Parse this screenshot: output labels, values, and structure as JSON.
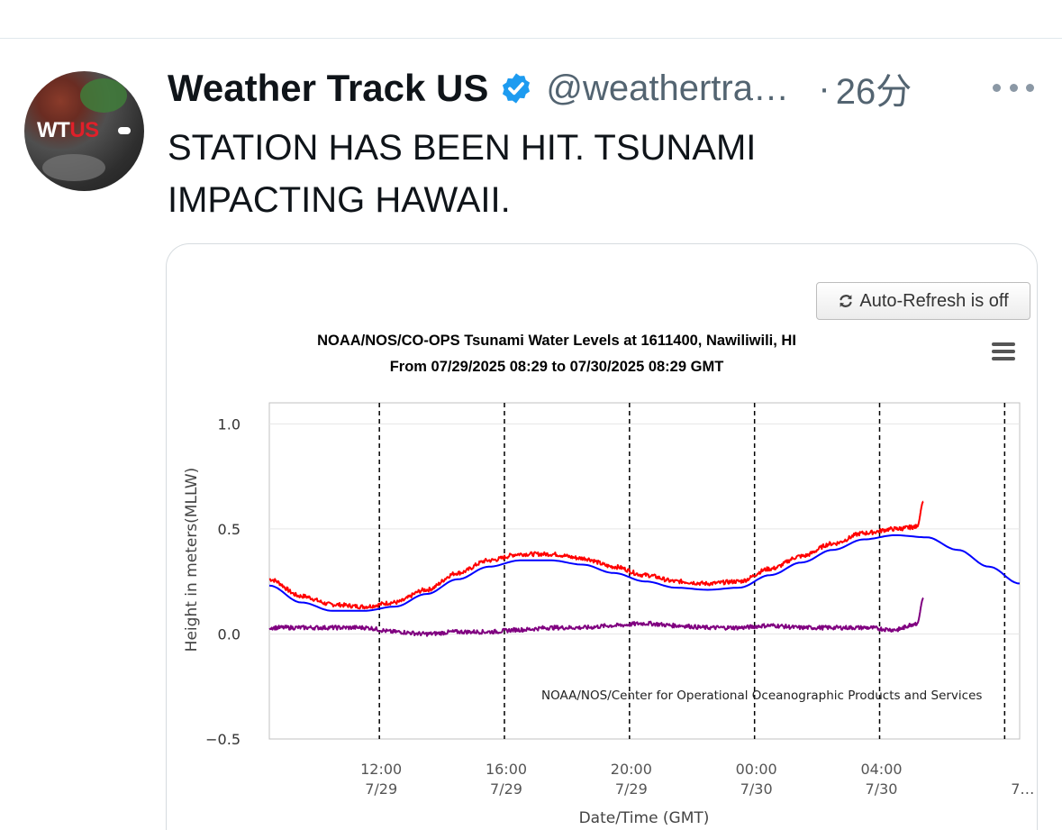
{
  "tweet": {
    "author_name": "Weather Track US",
    "handle": "@weathertra…",
    "separator": "·",
    "time": "26分",
    "text_line1": "STATION HAS BEEN HIT. TSUNAMI",
    "text_line2": "IMPACTING HAWAII.",
    "avatar_logo_white": "WT",
    "avatar_logo_red": "US",
    "verified_color": "#1d9bf0"
  },
  "card": {
    "refresh_button_label": "Auto-Refresh is off",
    "refresh_icon": "refresh-icon",
    "menu_icon": "hamburger-menu-icon"
  },
  "chart_data": {
    "type": "line",
    "title": "NOAA/NOS/CO-OPS Tsunami Water Levels at 1611400, Nawiliwili, HI",
    "subtitle": "From 07/29/2025 08:29 to 07/30/2025 08:29 GMT",
    "xlabel": "Date/Time (GMT)",
    "ylabel": "Height in meters(MLLW)",
    "credit": "NOAA/NOS/Center for Operational Oceanographic Products and Services",
    "x_range_hours": [
      8.48,
      32.48
    ],
    "ylim": [
      -0.5,
      1.1
    ],
    "y_ticks": [
      {
        "value": 1.0,
        "label": "1.0"
      },
      {
        "value": 0.5,
        "label": "0.5"
      },
      {
        "value": 0.0,
        "label": "0.0"
      },
      {
        "value": -0.5,
        "label": "−0.5"
      }
    ],
    "x_ticks": [
      {
        "hour": 12,
        "time": "12:00",
        "date": "7/29"
      },
      {
        "hour": 16,
        "time": "16:00",
        "date": "7/29"
      },
      {
        "hour": 20,
        "time": "20:00",
        "date": "7/29"
      },
      {
        "hour": 24,
        "time": "00:00",
        "date": "7/30"
      },
      {
        "hour": 28,
        "time": "04:00",
        "date": "7/30"
      },
      {
        "hour": 32,
        "time": "",
        "date": "7…"
      }
    ],
    "grid": true,
    "series": [
      {
        "color": "#0000ff",
        "x": [
          8.48,
          9.5,
          10.5,
          11.5,
          12.5,
          13.5,
          14.5,
          15.5,
          16.5,
          17.5,
          18.5,
          19.5,
          20.5,
          21.5,
          22.5,
          23.5,
          24.5,
          25.5,
          26.5,
          27.5,
          28.5,
          29.5,
          30.5,
          31.5,
          32.48
        ],
        "y": [
          0.23,
          0.15,
          0.11,
          0.11,
          0.13,
          0.19,
          0.26,
          0.32,
          0.35,
          0.35,
          0.33,
          0.29,
          0.25,
          0.22,
          0.21,
          0.22,
          0.28,
          0.34,
          0.4,
          0.45,
          0.47,
          0.46,
          0.4,
          0.32,
          0.24
        ]
      },
      {
        "color": "#ff0000",
        "x": [
          8.48,
          9.5,
          10.5,
          11.5,
          12.5,
          13.5,
          14.5,
          15.5,
          16.5,
          17.5,
          18.5,
          19.5,
          20.5,
          21.5,
          22.5,
          23.5,
          24.5,
          25.5,
          26.5,
          27.5,
          28.5,
          29.2,
          29.4
        ],
        "y": [
          0.26,
          0.18,
          0.14,
          0.13,
          0.15,
          0.21,
          0.29,
          0.35,
          0.38,
          0.38,
          0.36,
          0.32,
          0.28,
          0.25,
          0.24,
          0.25,
          0.31,
          0.37,
          0.43,
          0.48,
          0.5,
          0.51,
          0.63
        ]
      },
      {
        "color": "#800080",
        "x": [
          8.48,
          9.5,
          10.5,
          11.5,
          12.5,
          13.5,
          14.5,
          15.5,
          16.5,
          17.5,
          18.5,
          19.5,
          20.5,
          21.5,
          22.5,
          23.5,
          24.5,
          25.5,
          26.5,
          27.5,
          28.5,
          29.2,
          29.4
        ],
        "y": [
          0.03,
          0.03,
          0.03,
          0.03,
          0.01,
          0.0,
          0.01,
          0.01,
          0.02,
          0.03,
          0.03,
          0.04,
          0.05,
          0.04,
          0.03,
          0.03,
          0.04,
          0.03,
          0.03,
          0.03,
          0.02,
          0.05,
          0.17
        ]
      }
    ]
  }
}
